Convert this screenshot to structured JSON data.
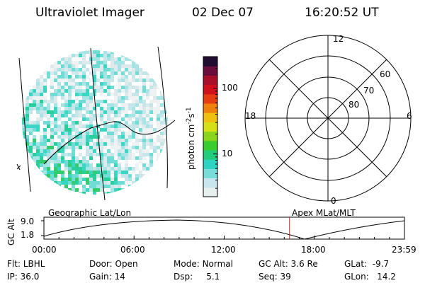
{
  "header": {
    "instrument": "Ultraviolet Imager",
    "date": "02 Dec 07",
    "time": "16:20:52 UT"
  },
  "colorbar": {
    "label": "photon cm⁻²s⁻¹",
    "label_base": "photon cm",
    "label_exp1": "-2",
    "label_s": "s",
    "label_exp2": "-1",
    "ticks": [
      "100",
      "10"
    ],
    "tick_values": [
      100,
      10
    ],
    "colors": [
      "#e6eeee",
      "#c9e6ee",
      "#7adcd8",
      "#2ed4c2",
      "#22cc7a",
      "#38cc2e",
      "#8ad41c",
      "#d6e016",
      "#f0c010",
      "#f0800c",
      "#e63c12",
      "#d0101a",
      "#a8102a",
      "#6a0c3c",
      "#200c30"
    ]
  },
  "polar": {
    "mlt_labels": [
      "12",
      "18",
      "6",
      "0"
    ],
    "lat_labels": [
      "60",
      "70",
      "80"
    ],
    "lat_values": [
      60,
      70,
      80
    ]
  },
  "timeline": {
    "left_title": "Geographic Lat/Lon",
    "right_title": "Apex MLat/MLT",
    "axis_label": "GC Alt",
    "y_ticks": [
      "9.0",
      "1.8"
    ],
    "y_values": [
      9.0,
      1.8
    ],
    "x_ticks": [
      "00:00",
      "06:00",
      "12:00",
      "18:00",
      "23:59"
    ],
    "marker_time_hours": 16.35
  },
  "info": {
    "filter_label": "Flt:",
    "filter_value": "LBHL",
    "door_label": "Door:",
    "door_value": "Open",
    "mode_label": "Mode:",
    "mode_value": "Normal",
    "gcalt_label": "GC Alt:",
    "gcalt_value": "3.6 Re",
    "glat_label": "GLat:",
    "glat_value": "-9.7",
    "ip_label": "IP:",
    "ip_value": "36.0",
    "gain_label": "Gain:",
    "gain_value": "14",
    "dsp_label": "Dsp:",
    "dsp_value": "5.1",
    "seq_label": "Seq:",
    "seq_value": "39",
    "glon_label": "GLon:",
    "glon_value": "14.2"
  },
  "colors": {
    "marker": "#c81e1e",
    "grid": "#000000"
  }
}
